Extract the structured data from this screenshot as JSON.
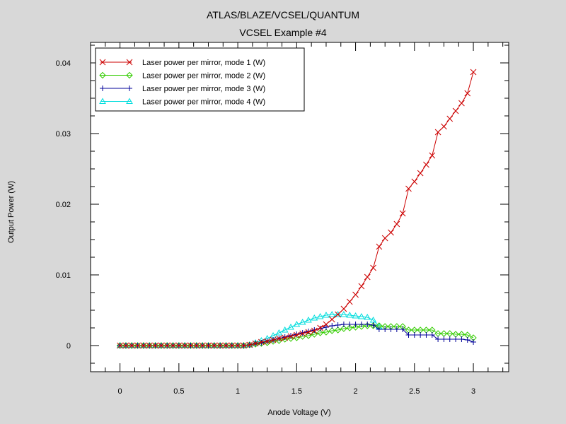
{
  "chart_data": {
    "type": "line",
    "title": "ATLAS/BLAZE/VCSEL/QUANTUM",
    "subtitle": "VCSEL Example #4",
    "xlabel": "Anode Voltage (V)",
    "ylabel": "Output Power (W)",
    "xlim": [
      -0.25,
      3.3
    ],
    "ylim": [
      -0.0037,
      0.0429
    ],
    "xticks": [
      0,
      0.5,
      1,
      1.5,
      2,
      2.5,
      3
    ],
    "xtick_labels": [
      "0",
      "0.5",
      "1",
      "1.5",
      "2",
      "2.5",
      "3"
    ],
    "yticks": [
      0,
      0.01,
      0.02,
      0.03,
      0.04
    ],
    "ytick_labels": [
      "0",
      "0.01",
      "0.02",
      "0.03",
      "0.04"
    ],
    "legend_position": "top-left",
    "grid": false,
    "series": [
      {
        "name": "Laser power per mirror, mode 1 (W)",
        "color": "#cc0000",
        "marker": "x",
        "x": [
          0,
          0.05,
          0.1,
          0.15,
          0.2,
          0.25,
          0.3,
          0.35,
          0.4,
          0.45,
          0.5,
          0.55,
          0.6,
          0.65,
          0.7,
          0.75,
          0.8,
          0.85,
          0.9,
          0.95,
          1.0,
          1.05,
          1.1,
          1.15,
          1.2,
          1.25,
          1.3,
          1.35,
          1.4,
          1.45,
          1.5,
          1.55,
          1.6,
          1.65,
          1.7,
          1.75,
          1.8,
          1.85,
          1.9,
          1.95,
          2.0,
          2.05,
          2.1,
          2.15,
          2.2,
          2.25,
          2.3,
          2.35,
          2.4,
          2.45,
          2.5,
          2.55,
          2.6,
          2.65,
          2.7,
          2.75,
          2.8,
          2.85,
          2.9,
          2.95,
          3.0
        ],
        "y": [
          0,
          0,
          0,
          0,
          0,
          0,
          0,
          0,
          0,
          0,
          0,
          0,
          0,
          0,
          0,
          0,
          0,
          0,
          0,
          0,
          0,
          0,
          0.0001,
          0.0003,
          0.0005,
          0.0006,
          0.0008,
          0.001,
          0.0011,
          0.0013,
          0.0015,
          0.0017,
          0.0019,
          0.0021,
          0.0025,
          0.003,
          0.0037,
          0.0044,
          0.0052,
          0.0062,
          0.0072,
          0.0084,
          0.0097,
          0.011,
          0.014,
          0.0152,
          0.016,
          0.0172,
          0.0187,
          0.0222,
          0.0232,
          0.0244,
          0.0256,
          0.0269,
          0.0302,
          0.031,
          0.0321,
          0.0332,
          0.0343,
          0.0357,
          0.0387
        ]
      },
      {
        "name": "Laser power per mirror, mode 2 (W)",
        "color": "#33cc00",
        "marker": "diamond",
        "x": [
          0,
          0.05,
          0.1,
          0.15,
          0.2,
          0.25,
          0.3,
          0.35,
          0.4,
          0.45,
          0.5,
          0.55,
          0.6,
          0.65,
          0.7,
          0.75,
          0.8,
          0.85,
          0.9,
          0.95,
          1.0,
          1.05,
          1.1,
          1.15,
          1.2,
          1.25,
          1.3,
          1.35,
          1.4,
          1.45,
          1.5,
          1.55,
          1.6,
          1.65,
          1.7,
          1.75,
          1.8,
          1.85,
          1.9,
          1.95,
          2.0,
          2.05,
          2.1,
          2.15,
          2.2,
          2.25,
          2.3,
          2.35,
          2.4,
          2.45,
          2.5,
          2.55,
          2.6,
          2.65,
          2.7,
          2.75,
          2.8,
          2.85,
          2.9,
          2.95,
          3.0
        ],
        "y": [
          0,
          0,
          0,
          0,
          0,
          0,
          0,
          0,
          0,
          0,
          0,
          0,
          0,
          0,
          0,
          0,
          0,
          0,
          0,
          0,
          0,
          0,
          0.0001,
          0.0002,
          0.0003,
          0.0004,
          0.0006,
          0.0007,
          0.0009,
          0.001,
          0.0011,
          0.0013,
          0.0014,
          0.0016,
          0.0018,
          0.0019,
          0.0021,
          0.0022,
          0.0024,
          0.0025,
          0.0026,
          0.0027,
          0.0028,
          0.0028,
          0.0028,
          0.0027,
          0.0027,
          0.0027,
          0.0027,
          0.0022,
          0.0022,
          0.0022,
          0.0022,
          0.0022,
          0.0017,
          0.0017,
          0.0017,
          0.0016,
          0.0016,
          0.0015,
          0.0011
        ]
      },
      {
        "name": "Laser power per mirror, mode 3 (W)",
        "color": "#000099",
        "marker": "plus",
        "x": [
          0,
          0.05,
          0.1,
          0.15,
          0.2,
          0.25,
          0.3,
          0.35,
          0.4,
          0.45,
          0.5,
          0.55,
          0.6,
          0.65,
          0.7,
          0.75,
          0.8,
          0.85,
          0.9,
          0.95,
          1.0,
          1.05,
          1.1,
          1.15,
          1.2,
          1.25,
          1.3,
          1.35,
          1.4,
          1.45,
          1.5,
          1.55,
          1.6,
          1.65,
          1.7,
          1.75,
          1.8,
          1.85,
          1.9,
          1.95,
          2.0,
          2.05,
          2.1,
          2.15,
          2.2,
          2.25,
          2.3,
          2.35,
          2.4,
          2.45,
          2.5,
          2.55,
          2.6,
          2.65,
          2.7,
          2.75,
          2.8,
          2.85,
          2.9,
          2.95,
          3.0
        ],
        "y": [
          0,
          0,
          0,
          0,
          0,
          0,
          0,
          0,
          0,
          0,
          0,
          0,
          0,
          0,
          0,
          0,
          0,
          0,
          0,
          0,
          0,
          0,
          0.0001,
          0.0003,
          0.0004,
          0.0006,
          0.0008,
          0.001,
          0.0012,
          0.0014,
          0.0016,
          0.0018,
          0.002,
          0.0022,
          0.0024,
          0.0026,
          0.0028,
          0.0029,
          0.003,
          0.003,
          0.003,
          0.003,
          0.003,
          0.0029,
          0.0023,
          0.0023,
          0.0023,
          0.0023,
          0.0023,
          0.0015,
          0.0015,
          0.0015,
          0.0015,
          0.0015,
          0.0009,
          0.0009,
          0.0009,
          0.0009,
          0.0009,
          0.0008,
          0.0005
        ]
      },
      {
        "name": "Laser power per mirror, mode 4 (W)",
        "color": "#00dddd",
        "marker": "triangle",
        "x": [
          0,
          0.05,
          0.1,
          0.15,
          0.2,
          0.25,
          0.3,
          0.35,
          0.4,
          0.45,
          0.5,
          0.55,
          0.6,
          0.65,
          0.7,
          0.75,
          0.8,
          0.85,
          0.9,
          0.95,
          1.0,
          1.05,
          1.1,
          1.15,
          1.2,
          1.25,
          1.3,
          1.35,
          1.4,
          1.45,
          1.5,
          1.55,
          1.6,
          1.65,
          1.7,
          1.75,
          1.8,
          1.85,
          1.9,
          1.95,
          2.0,
          2.05,
          2.1,
          2.15,
          2.2
        ],
        "y": [
          0,
          0,
          0,
          0,
          0,
          0,
          0,
          0,
          0,
          0,
          0,
          0,
          0,
          0,
          0,
          0,
          0,
          0,
          0,
          0,
          0,
          0,
          0.0001,
          0.0004,
          0.0007,
          0.001,
          0.0014,
          0.0018,
          0.0022,
          0.0026,
          0.003,
          0.0033,
          0.0036,
          0.0039,
          0.0041,
          0.0043,
          0.0044,
          0.0044,
          0.0044,
          0.0043,
          0.0042,
          0.0041,
          0.004,
          0.0036,
          0.0027
        ]
      }
    ]
  }
}
